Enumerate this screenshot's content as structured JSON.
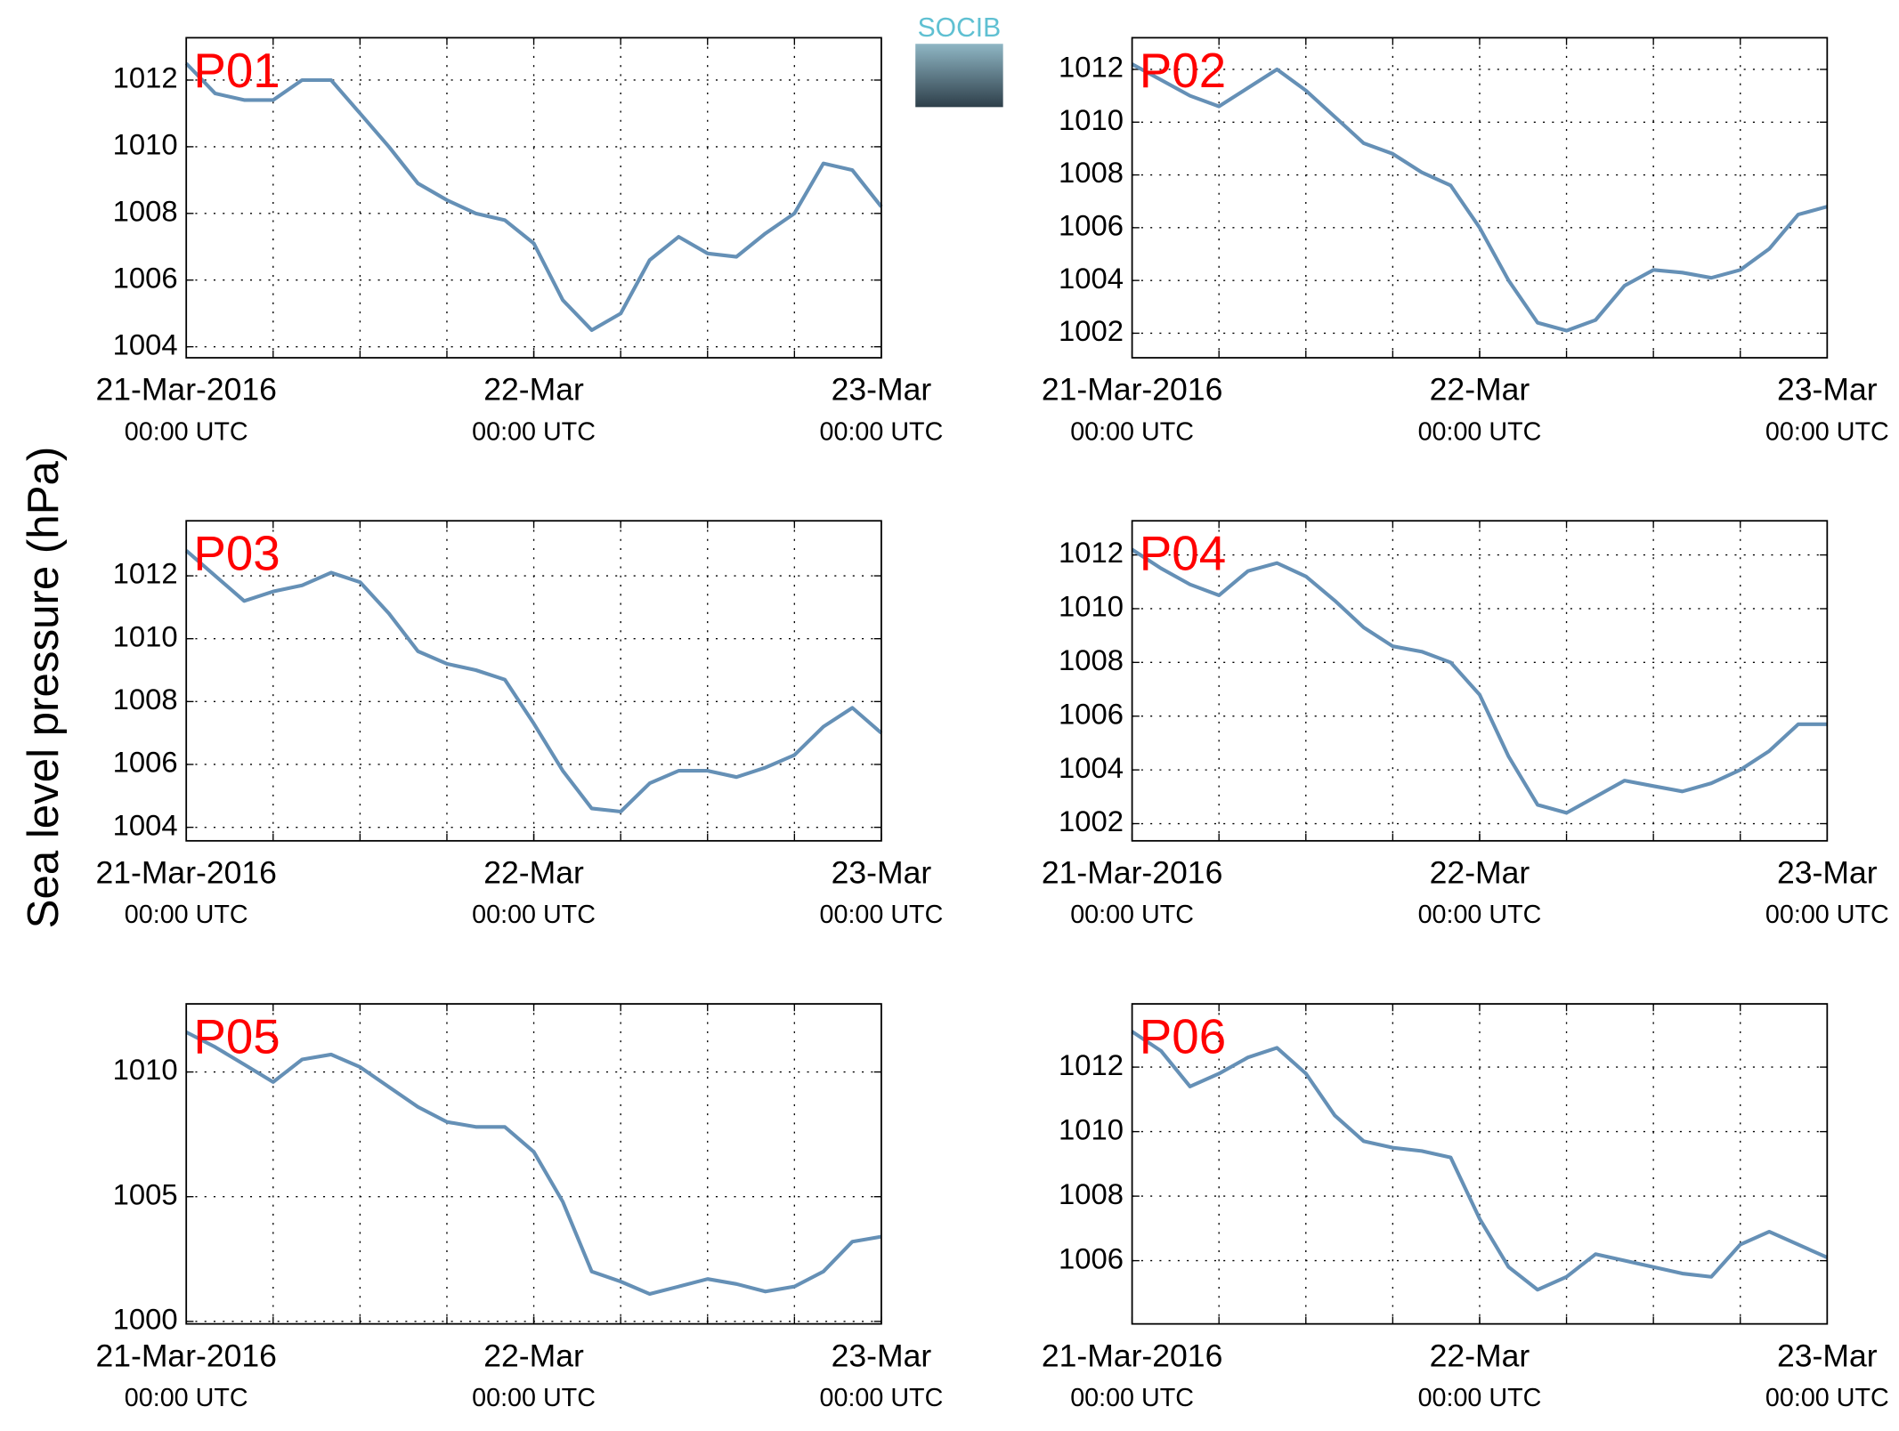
{
  "ylabel": "Sea level pressure (hPa)",
  "logo": "SOCIB",
  "chart_data": [
    {
      "type": "line",
      "title": "P01",
      "color": "#6590b6",
      "xlim": [
        0,
        48
      ],
      "ylim": [
        1003.67,
        1013.27
      ],
      "yticks": [
        1004,
        1006,
        1008,
        1010,
        1012
      ],
      "grid": true,
      "xticks": [
        {
          "value": 0,
          "label": [
            "21-Mar-2016",
            "00:00 UTC"
          ]
        },
        {
          "value": 24,
          "label": [
            "22-Mar",
            "00:00 UTC"
          ]
        },
        {
          "value": 48,
          "label": [
            "23-Mar",
            "00:00 UTC"
          ]
        }
      ],
      "minor_xticks": [
        6,
        12,
        18,
        24,
        30,
        36,
        42
      ],
      "x": [
        0,
        2,
        4,
        6,
        8,
        10,
        12,
        14,
        16,
        18,
        20,
        22,
        24,
        26,
        28,
        30,
        32,
        34,
        36,
        38,
        40,
        42,
        44,
        46,
        48
      ],
      "values": [
        1012.5,
        1011.6,
        1011.4,
        1011.4,
        1012.0,
        1012.0,
        1011.0,
        1010.0,
        1008.9,
        1008.4,
        1008.0,
        1007.8,
        1007.1,
        1005.4,
        1004.5,
        1005.0,
        1006.6,
        1007.3,
        1006.8,
        1006.7,
        1007.4,
        1008.0,
        1009.5,
        1009.3,
        1008.2
      ]
    },
    {
      "type": "line",
      "title": "P02",
      "color": "#6590b6",
      "xlim": [
        0,
        48
      ],
      "ylim": [
        1001.07,
        1013.2
      ],
      "yticks": [
        1002,
        1004,
        1006,
        1008,
        1010,
        1012
      ],
      "grid": true,
      "xticks": [
        {
          "value": 0,
          "label": [
            "21-Mar-2016",
            "00:00 UTC"
          ]
        },
        {
          "value": 24,
          "label": [
            "22-Mar",
            "00:00 UTC"
          ]
        },
        {
          "value": 48,
          "label": [
            "23-Mar",
            "00:00 UTC"
          ]
        }
      ],
      "minor_xticks": [
        6,
        12,
        18,
        24,
        30,
        36,
        42
      ],
      "x": [
        0,
        2,
        4,
        6,
        8,
        10,
        12,
        14,
        16,
        18,
        20,
        22,
        24,
        26,
        28,
        30,
        32,
        34,
        36,
        38,
        40,
        42,
        44,
        46,
        48
      ],
      "values": [
        1012.2,
        1011.6,
        1011.0,
        1010.6,
        1011.3,
        1012.0,
        1011.2,
        1010.2,
        1009.2,
        1008.8,
        1008.1,
        1007.6,
        1006.0,
        1004.0,
        1002.4,
        1002.1,
        1002.5,
        1003.8,
        1004.4,
        1004.3,
        1004.1,
        1004.4,
        1005.2,
        1006.5,
        1006.8
      ]
    },
    {
      "type": "line",
      "title": "P03",
      "color": "#6590b6",
      "xlim": [
        0,
        48
      ],
      "ylim": [
        1003.57,
        1013.75
      ],
      "yticks": [
        1004,
        1006,
        1008,
        1010,
        1012
      ],
      "grid": true,
      "xticks": [
        {
          "value": 0,
          "label": [
            "21-Mar-2016",
            "00:00 UTC"
          ]
        },
        {
          "value": 24,
          "label": [
            "22-Mar",
            "00:00 UTC"
          ]
        },
        {
          "value": 48,
          "label": [
            "23-Mar",
            "00:00 UTC"
          ]
        }
      ],
      "minor_xticks": [
        6,
        12,
        18,
        24,
        30,
        36,
        42
      ],
      "x": [
        0,
        2,
        4,
        6,
        8,
        10,
        12,
        14,
        16,
        18,
        20,
        22,
        24,
        26,
        28,
        30,
        32,
        34,
        36,
        38,
        40,
        42,
        44,
        46,
        48
      ],
      "values": [
        1012.8,
        1012.0,
        1011.2,
        1011.5,
        1011.7,
        1012.1,
        1011.8,
        1010.8,
        1009.6,
        1009.2,
        1009.0,
        1008.7,
        1007.3,
        1005.8,
        1004.6,
        1004.5,
        1005.4,
        1005.8,
        1005.8,
        1005.6,
        1005.9,
        1006.3,
        1007.2,
        1007.8,
        1007.0
      ]
    },
    {
      "type": "line",
      "title": "P04",
      "color": "#6590b6",
      "xlim": [
        0,
        48
      ],
      "ylim": [
        1001.36,
        1013.27
      ],
      "yticks": [
        1002,
        1004,
        1006,
        1008,
        1010,
        1012
      ],
      "grid": true,
      "xticks": [
        {
          "value": 0,
          "label": [
            "21-Mar-2016",
            "00:00 UTC"
          ]
        },
        {
          "value": 24,
          "label": [
            "22-Mar",
            "00:00 UTC"
          ]
        },
        {
          "value": 48,
          "label": [
            "23-Mar",
            "00:00 UTC"
          ]
        }
      ],
      "minor_xticks": [
        6,
        12,
        18,
        24,
        30,
        36,
        42
      ],
      "x": [
        0,
        2,
        4,
        6,
        8,
        10,
        12,
        14,
        16,
        18,
        20,
        22,
        24,
        26,
        28,
        30,
        32,
        34,
        36,
        38,
        40,
        42,
        44,
        46,
        48
      ],
      "values": [
        1012.2,
        1011.5,
        1010.9,
        1010.5,
        1011.4,
        1011.7,
        1011.2,
        1010.3,
        1009.3,
        1008.6,
        1008.4,
        1008.0,
        1006.8,
        1004.5,
        1002.7,
        1002.4,
        1003.0,
        1003.6,
        1003.4,
        1003.2,
        1003.5,
        1004.0,
        1004.7,
        1005.7,
        1005.7
      ]
    },
    {
      "type": "line",
      "title": "P05",
      "color": "#6590b6",
      "xlim": [
        0,
        48
      ],
      "ylim": [
        999.9,
        1012.73
      ],
      "yticks": [
        1000,
        1005,
        1010
      ],
      "grid": true,
      "xticks": [
        {
          "value": 0,
          "label": [
            "21-Mar-2016",
            "00:00 UTC"
          ]
        },
        {
          "value": 24,
          "label": [
            "22-Mar",
            "00:00 UTC"
          ]
        },
        {
          "value": 48,
          "label": [
            "23-Mar",
            "00:00 UTC"
          ]
        }
      ],
      "minor_xticks": [
        6,
        12,
        18,
        24,
        30,
        36,
        42
      ],
      "x": [
        0,
        2,
        4,
        6,
        8,
        10,
        12,
        14,
        16,
        18,
        20,
        22,
        24,
        26,
        28,
        30,
        32,
        34,
        36,
        38,
        40,
        42,
        44,
        46,
        48
      ],
      "values": [
        1011.6,
        1011.0,
        1010.3,
        1009.6,
        1010.5,
        1010.7,
        1010.2,
        1009.4,
        1008.6,
        1008.0,
        1007.8,
        1007.8,
        1006.8,
        1004.8,
        1002.0,
        1001.6,
        1001.1,
        1001.4,
        1001.7,
        1001.5,
        1001.2,
        1001.4,
        1002.0,
        1003.2,
        1003.4
      ]
    },
    {
      "type": "line",
      "title": "P06",
      "color": "#6590b6",
      "xlim": [
        0,
        48
      ],
      "ylim": [
        1004.04,
        1013.96
      ],
      "yticks": [
        1006,
        1008,
        1010,
        1012
      ],
      "grid": true,
      "xticks": [
        {
          "value": 0,
          "label": [
            "21-Mar-2016",
            "00:00 UTC"
          ]
        },
        {
          "value": 24,
          "label": [
            "22-Mar",
            "00:00 UTC"
          ]
        },
        {
          "value": 48,
          "label": [
            "23-Mar",
            "00:00 UTC"
          ]
        }
      ],
      "minor_xticks": [
        6,
        12,
        18,
        24,
        30,
        36,
        42
      ],
      "x": [
        0,
        2,
        4,
        6,
        8,
        10,
        12,
        14,
        16,
        18,
        20,
        22,
        24,
        26,
        28,
        30,
        32,
        34,
        36,
        38,
        40,
        42,
        44,
        46,
        48
      ],
      "values": [
        1013.1,
        1012.5,
        1011.4,
        1011.8,
        1012.3,
        1012.6,
        1011.8,
        1010.5,
        1009.7,
        1009.5,
        1009.4,
        1009.2,
        1007.3,
        1005.8,
        1005.1,
        1005.5,
        1006.2,
        1006.0,
        1005.8,
        1005.6,
        1005.5,
        1006.5,
        1006.9,
        1006.5,
        1006.1
      ]
    }
  ]
}
